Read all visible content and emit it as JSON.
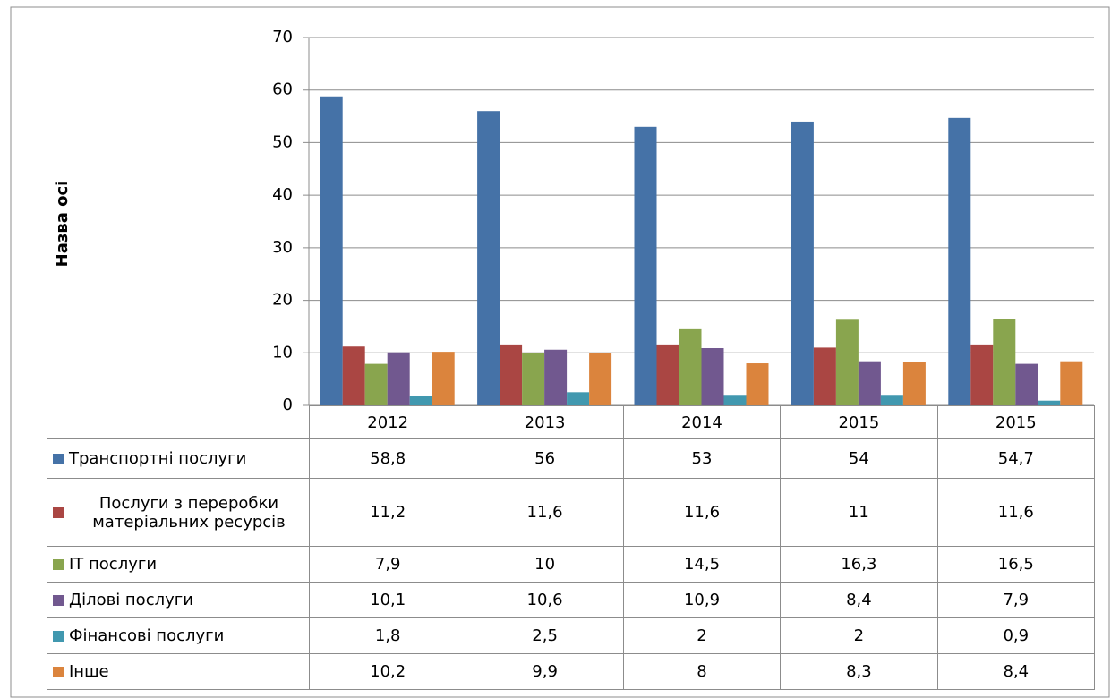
{
  "chart_data": {
    "type": "bar",
    "y_label": "Назва осі",
    "categories": [
      "2012",
      "2013",
      "2014",
      "2015",
      "2015"
    ],
    "series": [
      {
        "name": "Транспортні послуги",
        "color": "#4572a7",
        "values": [
          58.8,
          56,
          53,
          54,
          54.7
        ],
        "value_labels": [
          "58,8",
          "56",
          "53",
          "54",
          "54,7"
        ]
      },
      {
        "name": "Послуги з переробки матеріальних ресурсів",
        "color": "#aa4643",
        "values": [
          11.2,
          11.6,
          11.6,
          11,
          11.6
        ],
        "value_labels": [
          "11,2",
          "11,6",
          "11,6",
          "11",
          "11,6"
        ]
      },
      {
        "name": "ІТ послуги",
        "color": "#89a54e",
        "values": [
          7.9,
          10,
          14.5,
          16.3,
          16.5
        ],
        "value_labels": [
          "7,9",
          "10",
          "14,5",
          "16,3",
          "16,5"
        ]
      },
      {
        "name": "Ділові послуги",
        "color": "#71588f",
        "values": [
          10.1,
          10.6,
          10.9,
          8.4,
          7.9
        ],
        "value_labels": [
          "10,1",
          "10,6",
          "10,9",
          "8,4",
          "7,9"
        ]
      },
      {
        "name": "Фінансові послуги",
        "color": "#4198af",
        "values": [
          1.8,
          2.5,
          2,
          2,
          0.9
        ],
        "value_labels": [
          "1,8",
          "2,5",
          "2",
          "2",
          "0,9"
        ]
      },
      {
        "name": "Інше",
        "color": "#db843d",
        "values": [
          10.2,
          9.9,
          8,
          8.3,
          8.4
        ],
        "value_labels": [
          "10,2",
          "9,9",
          "8",
          "8,3",
          "8,4"
        ]
      }
    ],
    "ylim": [
      0,
      70
    ],
    "yticks": [
      0,
      10,
      20,
      30,
      40,
      50,
      60,
      70
    ],
    "grid": true
  }
}
